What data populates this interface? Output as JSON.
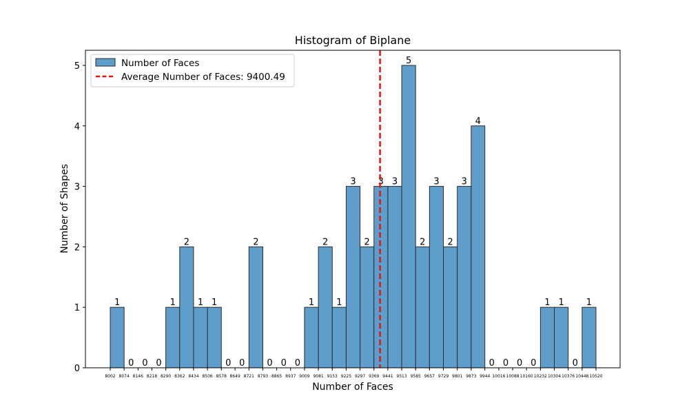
{
  "chart_data": {
    "type": "bar",
    "title": "Histogram of Biplane",
    "xlabel": "Number of Faces",
    "ylabel": "Number of Shapes",
    "ylim": [
      0,
      5.25
    ],
    "yticks": [
      "0",
      "1",
      "2",
      "3",
      "4",
      "5"
    ],
    "bin_edges": [
      "8002",
      "8074",
      "8146",
      "8218",
      "8290",
      "8362",
      "8434",
      "8506",
      "8578",
      "8649",
      "8721",
      "8793",
      "8865",
      "8937",
      "9009",
      "9081",
      "9153",
      "9225",
      "9297",
      "9369",
      "9441",
      "9513",
      "9585",
      "9657",
      "9729",
      "9801",
      "9873",
      "9944",
      "10016",
      "10088",
      "10160",
      "10232",
      "10304",
      "10376",
      "10448",
      "10520"
    ],
    "values": [
      1,
      0,
      0,
      0,
      1,
      2,
      1,
      1,
      0,
      0,
      2,
      0,
      0,
      0,
      1,
      2,
      1,
      3,
      2,
      3,
      3,
      5,
      2,
      3,
      2,
      3,
      4,
      0,
      0,
      0,
      0,
      1,
      1,
      0,
      1
    ],
    "value_labels": [
      "1",
      "0",
      "0",
      "0",
      "1",
      "2",
      "1",
      "1",
      "0",
      "0",
      "2",
      "0",
      "0",
      "0",
      "1",
      "2",
      "1",
      "3",
      "2",
      "3",
      "3",
      "5",
      "2",
      "3",
      "2",
      "3",
      "4",
      "0",
      "0",
      "0",
      "0",
      "1",
      "1",
      "0",
      "1"
    ],
    "average_line": {
      "value": 9400.49
    },
    "legend": {
      "placement": "top-left",
      "entries": [
        {
          "label": "Number of Faces",
          "kind": "bar"
        },
        {
          "label": "Average Number of Faces: 9400.49",
          "kind": "dashed-line"
        }
      ]
    },
    "colors": {
      "bar": "#5f9ecb",
      "bar_edge": "#2b2b2b",
      "average_line": "#e8120c"
    },
    "grid": false
  }
}
